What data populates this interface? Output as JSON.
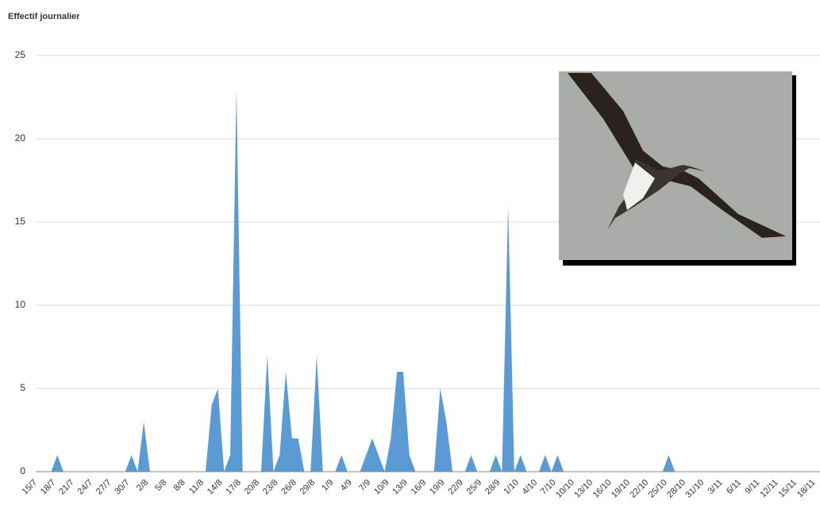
{
  "chart_data": {
    "type": "area",
    "title": "Effectif journalier",
    "categories": [
      "15/7",
      null,
      null,
      "18/7",
      null,
      null,
      "21/7",
      null,
      null,
      "24/7",
      null,
      null,
      "27/7",
      null,
      null,
      "30/7",
      null,
      null,
      "2/8",
      null,
      null,
      "5/8",
      null,
      null,
      "8/8",
      null,
      null,
      "11/8",
      null,
      null,
      "14/8",
      null,
      null,
      "17/8",
      null,
      null,
      "20/8",
      null,
      null,
      "23/8",
      null,
      null,
      "26/8",
      null,
      null,
      "29/8",
      null,
      null,
      "1/9",
      null,
      null,
      "4/9",
      null,
      null,
      "7/9",
      null,
      null,
      "10/9",
      null,
      null,
      "13/9",
      null,
      null,
      "16/9",
      null,
      null,
      "19/9",
      null,
      null,
      "22/9",
      null,
      null,
      "25/9",
      null,
      null,
      "28/9",
      null,
      null,
      "1/10",
      null,
      null,
      "4/10",
      null,
      null,
      "7/10",
      null,
      null,
      "10/10",
      null,
      null,
      "13/10",
      null,
      null,
      "16/10",
      null,
      null,
      "19/10",
      null,
      null,
      "22/10",
      null,
      null,
      "25/10",
      null,
      null,
      "28/10",
      null,
      null,
      "31/10",
      null,
      null,
      "3/11",
      null,
      null,
      "6/11",
      null,
      null,
      "9/11",
      null,
      null,
      "12/11",
      null,
      null,
      "15/11",
      null,
      null,
      "18/11"
    ],
    "values": [
      0,
      0,
      0,
      1,
      0,
      0,
      0,
      0,
      0,
      0,
      0,
      0,
      0,
      0,
      0,
      1,
      0,
      3,
      0,
      0,
      0,
      0,
      0,
      0,
      0,
      0,
      0,
      0,
      4,
      5,
      0,
      1,
      23,
      0,
      0,
      0,
      0,
      7,
      0,
      1,
      6,
      2,
      2,
      0,
      0,
      7,
      0,
      0,
      0,
      1,
      0,
      0,
      0,
      1,
      2,
      1,
      0,
      2,
      6,
      6,
      1,
      0,
      0,
      0,
      0,
      5,
      3,
      0,
      0,
      0,
      1,
      0,
      0,
      0,
      1,
      0,
      16,
      0,
      1,
      0,
      0,
      0,
      1,
      0,
      1,
      0,
      0,
      0,
      0,
      0,
      0,
      0,
      0,
      0,
      0,
      0,
      0,
      0,
      0,
      0,
      0,
      0,
      1,
      0,
      0,
      0,
      0,
      0,
      0,
      0,
      0,
      0,
      0,
      0,
      0,
      0,
      0,
      0,
      0,
      0,
      0,
      0,
      0,
      0,
      0,
      0,
      0
    ],
    "color": "#5b9bd5",
    "ylim": [
      0,
      25
    ],
    "yticks": [
      0,
      5,
      10,
      15,
      20,
      25
    ],
    "grid": true
  }
}
